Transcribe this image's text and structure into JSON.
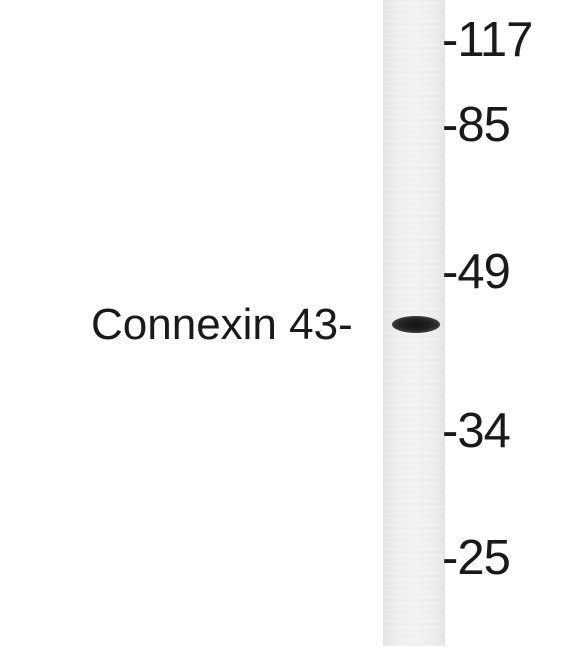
{
  "protein_label": "Connexin 43-",
  "markers": [
    {
      "text": "-117"
    },
    {
      "text": "-85"
    },
    {
      "text": "-49"
    },
    {
      "text": "-34"
    },
    {
      "text": "-25"
    }
  ],
  "colors": {
    "background": "#ffffff",
    "lane": "#f1f1f1",
    "band": "#1e1e1e",
    "text": "#1a1a1a"
  }
}
